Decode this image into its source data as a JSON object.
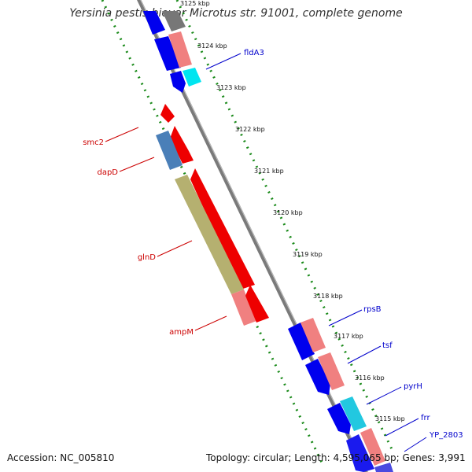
{
  "header": {
    "title": "Yersinia pestis biovar Microtus str. 91001, complete genome"
  },
  "footer": {
    "accession": "Accession: NC_005810",
    "summary": "Topology: circular; Length: 4,595,065 bp; Genes: 3,991"
  },
  "ticks": [
    {
      "label": "3125 kbp"
    },
    {
      "label": "3124 kbp"
    },
    {
      "label": "3123 kbp"
    },
    {
      "label": "3122 kbp"
    },
    {
      "label": "3121 kbp"
    },
    {
      "label": "3120 kbp"
    },
    {
      "label": "3119 kbp"
    },
    {
      "label": "3118 kbp"
    },
    {
      "label": "3117 kbp"
    },
    {
      "label": "3116 kbp"
    },
    {
      "label": "3115 kbp"
    }
  ],
  "gene_labels": {
    "left": [
      "smc2",
      "dapD",
      "glnD",
      "ampM"
    ],
    "right": [
      "fldA3",
      "rpsB",
      "tsf",
      "pyrH",
      "frr",
      "YP_2803"
    ]
  },
  "colors": {
    "forward_strand": "#0000ee",
    "reverse_strand": "#ee0000",
    "rna": "#f08080",
    "olive": "#b5b070",
    "cyan": "#00d0e8",
    "steelblue": "#4a7fb8",
    "ticks": "#1a8a1a",
    "label_left": "#cc0000",
    "label_right": "#0000cc"
  }
}
